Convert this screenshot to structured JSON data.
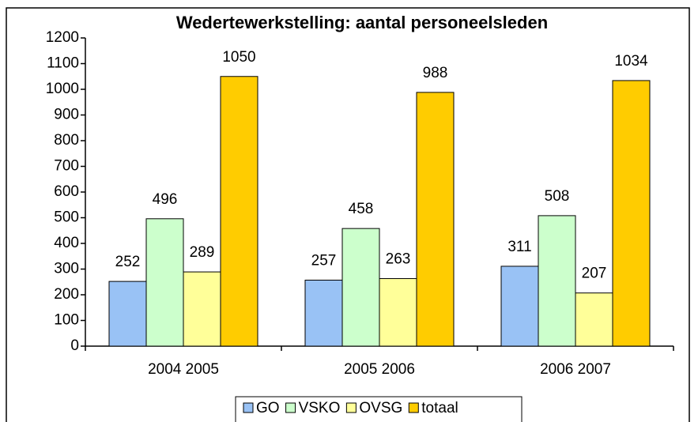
{
  "chart_data": {
    "type": "bar",
    "title": "Wedertewerkstelling: aantal personeelsleden",
    "categories": [
      "2004 2005",
      "2005 2006",
      "2006 2007"
    ],
    "series": [
      {
        "name": "GO",
        "color": "#99c2f5",
        "values": [
          252,
          257,
          311
        ]
      },
      {
        "name": "VSKO",
        "color": "#ccffcc",
        "values": [
          496,
          458,
          508
        ]
      },
      {
        "name": "OVSG",
        "color": "#ffff99",
        "values": [
          289,
          263,
          207
        ]
      },
      {
        "name": "totaal",
        "color": "#ffcc00",
        "values": [
          1050,
          988,
          1034
        ]
      }
    ],
    "ylim": [
      0,
      1200
    ],
    "yticks": [
      0,
      100,
      200,
      300,
      400,
      500,
      600,
      700,
      800,
      900,
      1000,
      1100,
      1200
    ],
    "grid": false,
    "legend": "bottom"
  }
}
